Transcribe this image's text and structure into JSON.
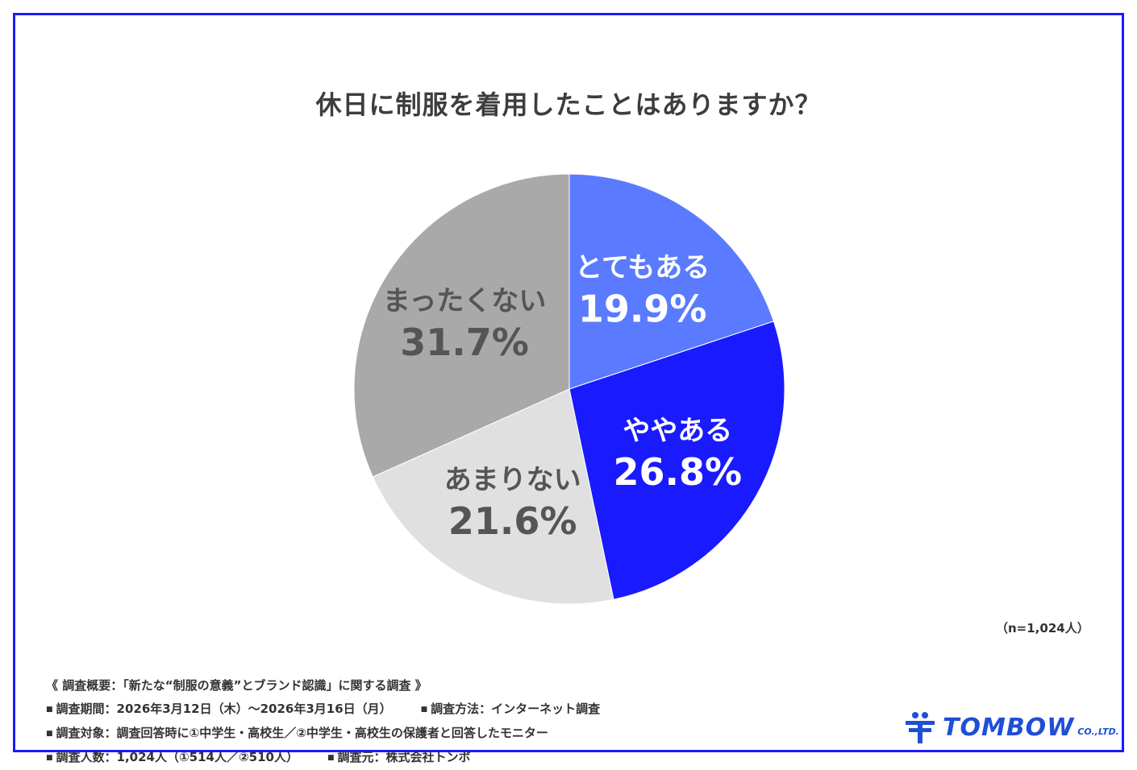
{
  "chart_data": {
    "type": "pie",
    "title": "休日に制服を着用したことはありますか？",
    "start_angle_deg": 0,
    "direction": "clockwise",
    "slices": [
      {
        "label": "とてもある",
        "value": 19.9,
        "display": "19.9%",
        "color": "#5a7bff",
        "text_color": "#ffffff"
      },
      {
        "label": "ややある",
        "value": 26.8,
        "display": "26.8%",
        "color": "#1a1aff",
        "text_color": "#ffffff"
      },
      {
        "label": "あまりない",
        "value": 21.6,
        "display": "21.6%",
        "color": "#e0e0e0",
        "text_color": "#555555"
      },
      {
        "label": "まったくない",
        "value": 31.7,
        "display": "31.7%",
        "color": "#a9a9a9",
        "text_color": "#555555"
      }
    ]
  },
  "note": "（n=1,024人）",
  "survey": {
    "heading": "《 調査概要：「新たな“制服の意義”とブランド認識」に関する調査 》",
    "bullet": "■",
    "period": "調査期間：2026年3月12日（木）～2026年3月16日（月）",
    "method": "調査方法：インターネット調査",
    "target": "調査対象：調査回答時に①中学生・高校生／②中学生・高校生の保護者と回答したモニター",
    "count": "調査人数：1,024人（①514人／②510人）",
    "source": "調査元：株式会社トンボ"
  },
  "logo": {
    "icon": "tombow-mark-icon",
    "text": "TOMBOW",
    "sub": "CO.,LTD.",
    "color": "#1e4fd6"
  },
  "frame_color": "#1a1aff"
}
